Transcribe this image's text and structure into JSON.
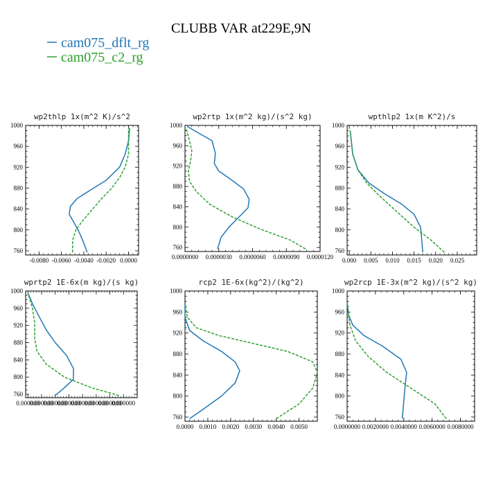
{
  "figure": {
    "title": "CLUBB VAR at229E,9N",
    "legend": [
      {
        "label": "cam075_dflt_rg",
        "color": "#1f77b4"
      },
      {
        "label": "cam075_c2_rg",
        "color": "#2ca02c"
      }
    ]
  },
  "chart_data": [
    {
      "type": "line",
      "title": "wp2thlp  1x(m^2 K)/s^2",
      "xlim": [
        -0.0092,
        0.0009
      ],
      "ylim": [
        1000,
        752
      ],
      "y_inverted": true,
      "xticks": [
        "-0.0080",
        "-0.0060",
        "-0.0040",
        "-0.0020",
        "0.0000"
      ],
      "xtick_values": [
        -0.008,
        -0.006,
        -0.004,
        -0.002,
        0.0
      ],
      "yticks": [
        760,
        800,
        840,
        880,
        920,
        960,
        1000
      ],
      "series": [
        {
          "name": "cam075_dflt_rg",
          "color": "#1f77b4",
          "dash": "",
          "x": [
            -0.0037,
            -0.004,
            -0.0044,
            -0.0049,
            -0.0053,
            -0.0052,
            -0.0046,
            -0.0035,
            -0.002,
            -0.0008,
            -0.0003,
            0.0,
            0.0001
          ],
          "y": [
            757,
            775,
            795,
            815,
            830,
            845,
            860,
            875,
            895,
            920,
            945,
            970,
            995
          ]
        },
        {
          "name": "cam075_c2_rg",
          "color": "#2ca02c",
          "dash": "4,2",
          "x": [
            -0.005,
            -0.005,
            -0.0047,
            -0.004,
            -0.0032,
            -0.0024,
            -0.0015,
            -0.0008,
            -0.0003,
            0.0,
            0.0,
            0.0
          ],
          "y": [
            757,
            780,
            800,
            820,
            840,
            860,
            880,
            900,
            920,
            945,
            970,
            995
          ]
        }
      ]
    },
    {
      "type": "line",
      "title": "wp2rtp  1x(m^2 kg)/(s^2 kg)",
      "xlim": [
        0.0,
        1.2e-05
      ],
      "ylim": [
        1000,
        752
      ],
      "y_inverted": true,
      "xticks": [
        "0.0000000",
        "0.0000030",
        "0.0000060",
        "0.0000090",
        "0.0000120"
      ],
      "xtick_values": [
        0.0,
        3e-06,
        6e-06,
        9e-06,
        1.2e-05
      ],
      "yticks": [
        760,
        800,
        840,
        880,
        920,
        960,
        1000
      ],
      "series": [
        {
          "name": "cam075_dflt_rg",
          "color": "#1f77b4",
          "dash": "",
          "x": [
            2.9e-06,
            3.2e-06,
            3.9e-06,
            4.8e-06,
            5.6e-06,
            5.7e-06,
            5.2e-06,
            4e-06,
            3e-06,
            2.6e-06,
            2.7e-06,
            2.4e-06,
            1.2e-06,
            2e-07
          ],
          "y": [
            757,
            780,
            800,
            820,
            838,
            855,
            875,
            895,
            910,
            925,
            945,
            970,
            985,
            998
          ]
        },
        {
          "name": "cam075_c2_rg",
          "color": "#2ca02c",
          "dash": "4,2",
          "x": [
            1.07e-05,
            9.3e-06,
            6.8e-06,
            4.2e-06,
            2.2e-06,
            1e-06,
            4e-07,
            3e-07,
            5e-07,
            6e-07,
            4e-07,
            1e-07
          ],
          "y": [
            757,
            775,
            795,
            820,
            845,
            870,
            890,
            910,
            930,
            950,
            970,
            995
          ]
        }
      ]
    },
    {
      "type": "line",
      "title": "wpthlp2  1x(m K^2)/s",
      "xlim": [
        -0.0005,
        0.0295
      ],
      "ylim": [
        1000,
        752
      ],
      "y_inverted": true,
      "xticks": [
        "0.000",
        "0.005",
        "0.010",
        "0.015",
        "0.020",
        "0.025"
      ],
      "xtick_values": [
        0.0,
        0.005,
        0.01,
        0.015,
        0.02,
        0.025
      ],
      "yticks": [
        760,
        800,
        840,
        880,
        920,
        960,
        1000
      ],
      "series": [
        {
          "name": "cam075_dflt_rg",
          "color": "#1f77b4",
          "dash": "",
          "x": [
            0.017,
            0.0168,
            0.0165,
            0.015,
            0.012,
            0.008,
            0.0045,
            0.002,
            0.0008,
            0.0002
          ],
          "y": [
            757,
            780,
            805,
            830,
            850,
            870,
            890,
            915,
            945,
            990
          ]
        },
        {
          "name": "cam075_c2_rg",
          "color": "#2ca02c",
          "dash": "4,2",
          "x": [
            0.022,
            0.019,
            0.015,
            0.011,
            0.007,
            0.004,
            0.002,
            0.0008,
            0.0002
          ],
          "y": [
            757,
            780,
            805,
            835,
            865,
            890,
            915,
            945,
            990
          ]
        }
      ]
    },
    {
      "type": "line",
      "title": "wprtp2  1E-6x(m kg)/(s kg)",
      "xlim": [
        -1e-07,
        4.8e-06
      ],
      "ylim": [
        1000,
        752
      ],
      "y_inverted": true,
      "xticks": [
        "0.000000",
        "0.000000",
        "0.000000",
        "0.000000",
        "0.000000",
        "0.000000",
        "0.000000",
        "0.000000"
      ],
      "xtick_values": [
        0.0,
        6e-07,
        1.2e-06,
        1.8e-06,
        2.4e-06,
        3e-06,
        3.6e-06,
        4.2e-06
      ],
      "yticks": [
        760,
        800,
        840,
        880,
        920,
        960,
        1000
      ],
      "series": [
        {
          "name": "cam075_dflt_rg",
          "color": "#1f77b4",
          "dash": "",
          "x": [
            1.2e-06,
            1.6e-06,
            2e-06,
            2e-06,
            1.7e-06,
            1.2e-06,
            8e-07,
            5e-07,
            2e-07,
            0.0
          ],
          "y": [
            757,
            775,
            795,
            820,
            850,
            880,
            910,
            940,
            970,
            995
          ]
        },
        {
          "name": "cam075_c2_rg",
          "color": "#2ca02c",
          "dash": "4,2",
          "x": [
            4e-06,
            2.8e-06,
            1.6e-06,
            8e-07,
            4e-07,
            3e-07,
            3e-07,
            2e-07,
            0.0
          ],
          "y": [
            757,
            775,
            800,
            830,
            860,
            890,
            925,
            960,
            995
          ]
        }
      ]
    },
    {
      "type": "line",
      "title": "rcp2  1E-6x(kg^2)/(kg^2)",
      "xlim": [
        0.0,
        0.0058
      ],
      "ylim": [
        1000,
        752
      ],
      "y_inverted": true,
      "xticks": [
        "0.0000",
        "0.0010",
        "0.0020",
        "0.0030",
        "0.0040",
        "0.0050"
      ],
      "xtick_values": [
        0.0,
        0.001,
        0.002,
        0.003,
        0.004,
        0.005
      ],
      "yticks": [
        760,
        800,
        840,
        880,
        920,
        960,
        1000
      ],
      "series": [
        {
          "name": "cam075_dflt_rg",
          "color": "#1f77b4",
          "dash": "",
          "x": [
            0.0002,
            0.0008,
            0.0016,
            0.0022,
            0.0024,
            0.0022,
            0.0016,
            0.0008,
            0.0002,
            0.0,
            0.0
          ],
          "y": [
            757,
            775,
            800,
            825,
            848,
            865,
            885,
            905,
            925,
            950,
            975
          ]
        },
        {
          "name": "cam075_c2_rg",
          "color": "#2ca02c",
          "dash": "4,2",
          "x": [
            0.004,
            0.005,
            0.0056,
            0.0058,
            0.0056,
            0.0045,
            0.003,
            0.0015,
            0.0005,
            0.0001,
            0.0
          ],
          "y": [
            757,
            785,
            815,
            845,
            865,
            885,
            900,
            915,
            930,
            950,
            975
          ]
        }
      ]
    },
    {
      "type": "line",
      "title": "wp2rcp  1E-3x(m^2 kg)/(s^2 kg)",
      "xlim": [
        0.0,
        0.009
      ],
      "ylim": [
        1000,
        752
      ],
      "y_inverted": true,
      "xticks": [
        "0.0000000",
        "0.0020000",
        "0.0040000",
        "0.0060000",
        "0.0080000"
      ],
      "xtick_values": [
        0.0,
        0.002,
        0.004,
        0.006,
        0.008
      ],
      "yticks": [
        760,
        800,
        840,
        880,
        920,
        960,
        1000
      ],
      "series": [
        {
          "name": "cam075_dflt_rg",
          "color": "#1f77b4",
          "dash": "",
          "x": [
            0.0039,
            0.004,
            0.0041,
            0.0042,
            0.0038,
            0.0025,
            0.0012,
            0.0004,
            0.0001,
            0.0
          ],
          "y": [
            757,
            790,
            820,
            845,
            870,
            895,
            915,
            935,
            955,
            980
          ]
        },
        {
          "name": "cam075_c2_rg",
          "color": "#2ca02c",
          "dash": "4,2",
          "x": [
            0.007,
            0.0062,
            0.0045,
            0.0028,
            0.0015,
            0.0006,
            0.0002,
            0.0
          ],
          "y": [
            757,
            785,
            815,
            845,
            875,
            905,
            935,
            975
          ]
        }
      ]
    }
  ]
}
